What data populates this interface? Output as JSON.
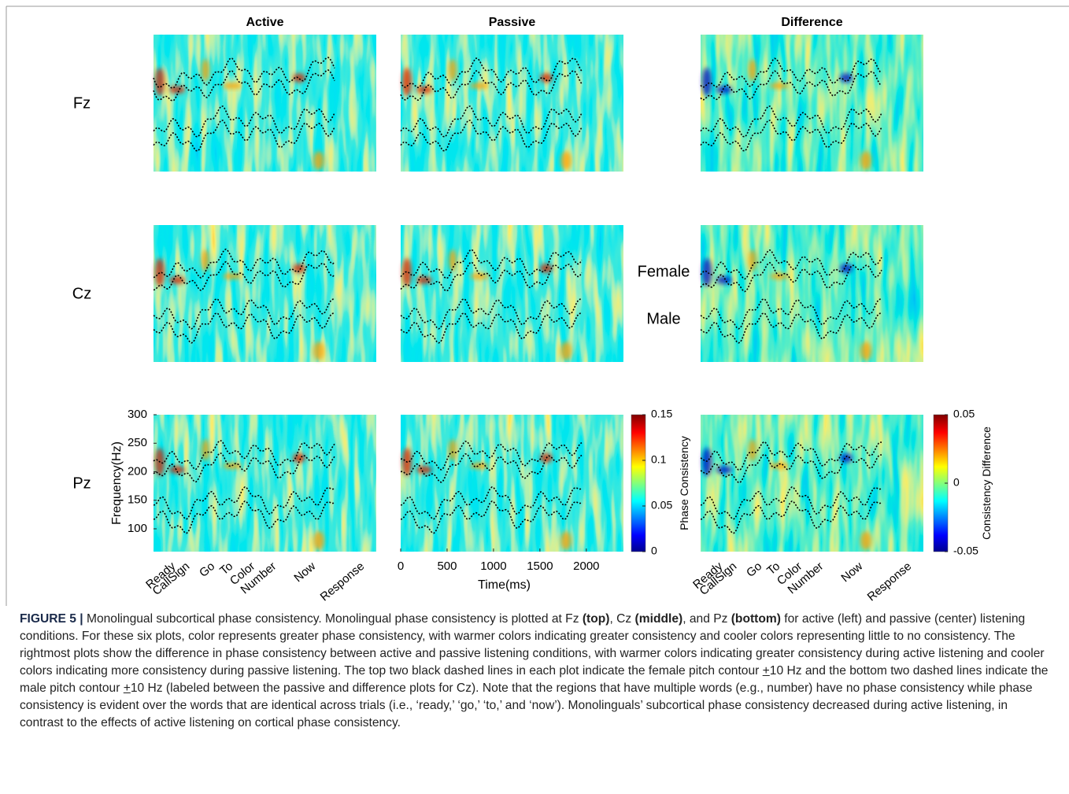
{
  "figure": {
    "columns": [
      "Active",
      "Passive",
      "Difference"
    ],
    "rows": [
      "Fz",
      "Cz",
      "Pz"
    ],
    "contour_labels": [
      "Female",
      "Male"
    ],
    "y_axis": {
      "label": "Frequency(Hz)",
      "ticks": [
        100,
        150,
        200,
        250,
        300
      ],
      "lim": [
        60,
        300
      ]
    },
    "time_axis": {
      "label": "Time(ms)",
      "ticks": [
        0,
        500,
        1000,
        1500,
        2000
      ],
      "lim": [
        0,
        2400
      ]
    },
    "word_labels": [
      "Ready",
      "CallSign",
      "Go",
      "To",
      "Color",
      "Number",
      "Now",
      "Response"
    ],
    "colorbars": [
      {
        "label": "Phase Consistency",
        "ticks": [
          0,
          0.05,
          0.1,
          0.15
        ],
        "lim": [
          0,
          0.15
        ]
      },
      {
        "label": "Consistency Difference",
        "ticks": [
          -0.05,
          0,
          0.05
        ],
        "lim": [
          -0.05,
          0.05
        ]
      }
    ]
  },
  "caption": [
    {
      "text": "FIGURE 5 |",
      "bold": true
    },
    {
      "text": " Monolingual subcortical phase consistency. Monolingual phase consistency is plotted at Fz "
    },
    {
      "text": "(top)",
      "bold": true
    },
    {
      "text": ", Cz "
    },
    {
      "text": "(middle)",
      "bold": true
    },
    {
      "text": ", and Pz "
    },
    {
      "text": "(bottom)",
      "bold": true
    },
    {
      "text": " for active (left) and passive (center) listening conditions. For these six plots, color represents greater phase consistency, with warmer colors indicating greater consistency and cooler colors representing little to no consistency. The rightmost plots show the difference in phase consistency between active and passive listening conditions, with warmer colors indicating greater consistency during active listening and cooler colors indicating more consistency during passive listening. The top two black dashed lines in each plot indicate the female pitch contour "
    },
    {
      "text": "+",
      "underline": true
    },
    {
      "text": "10 Hz and the bottom two dashed lines indicate the male pitch contour "
    },
    {
      "text": "+",
      "underline": true
    },
    {
      "text": "10 Hz (labeled between the passive and difference plots for Cz). Note that the regions that have multiple words (e.g., number) have no phase consistency while phase consistency is evident over the words that are identical across trials (i.e., ‘ready,’ ‘go,’ ‘to,’ and ‘now’). Monolinguals’ subcortical phase consistency decreased during active listening, in contrast to the effects of active listening on cortical phase consistency."
    }
  ]
}
